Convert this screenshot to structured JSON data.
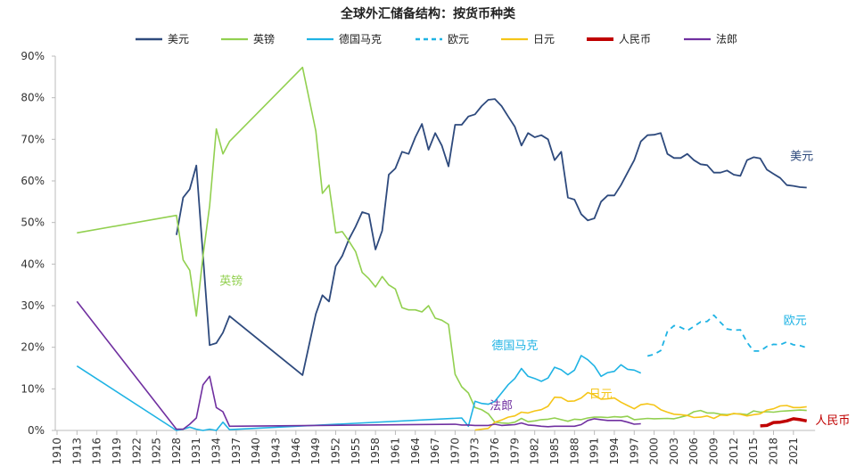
{
  "chart_data": {
    "type": "line",
    "title": "全球外汇储备结构：按货币种类",
    "xlabel": "",
    "ylabel": "",
    "xlim": [
      1910,
      2024
    ],
    "ylim": [
      0,
      90
    ],
    "y_ticks": [
      "0%",
      "10%",
      "20%",
      "30%",
      "40%",
      "50%",
      "60%",
      "70%",
      "80%",
      "90%"
    ],
    "x_ticks": [
      1910,
      1913,
      1916,
      1919,
      1922,
      1925,
      1928,
      1931,
      1934,
      1937,
      1940,
      1943,
      1946,
      1949,
      1952,
      1955,
      1958,
      1961,
      1964,
      1967,
      1970,
      1973,
      1976,
      1979,
      1982,
      1985,
      1988,
      1991,
      1994,
      1997,
      2000,
      2003,
      2006,
      2009,
      2012,
      2015,
      2018,
      2021
    ],
    "grid": false,
    "legend": "top",
    "series": [
      {
        "name": "美元",
        "color": "#2e4a7d",
        "dash": false,
        "width": 1.8,
        "label_year": 2020.5,
        "label_y": 65,
        "x": [
          1928,
          1929,
          1930,
          1931,
          1933,
          1934,
          1935,
          1936,
          1947,
          1949,
          1950,
          1951,
          1952,
          1953,
          1954,
          1955,
          1956,
          1957,
          1958,
          1959,
          1960,
          1961,
          1962,
          1963,
          1964,
          1965,
          1966,
          1967,
          1968,
          1969,
          1970,
          1971,
          1972,
          1973,
          1974,
          1975,
          1976,
          1977,
          1978,
          1979,
          1980,
          1981,
          1982,
          1983,
          1984,
          1985,
          1986,
          1987,
          1988,
          1989,
          1990,
          1991,
          1992,
          1993,
          1994,
          1995,
          1996,
          1997,
          1998,
          1999,
          2000,
          2001,
          2002,
          2003,
          2004,
          2005,
          2006,
          2007,
          2008,
          2009,
          2010,
          2011,
          2012,
          2013,
          2014,
          2015,
          2016,
          2017,
          2018,
          2019,
          2020,
          2021,
          2022,
          2023
        ],
        "y": [
          47,
          56,
          58,
          63.7,
          20.5,
          21,
          23.5,
          27.5,
          13.3,
          28,
          32.5,
          31,
          39.5,
          42,
          46,
          49,
          52.5,
          52,
          43.5,
          48,
          61.5,
          63,
          67,
          66.5,
          70.5,
          73.7,
          67.5,
          71.5,
          68.5,
          63.5,
          73.5,
          73.5,
          75.5,
          76,
          78,
          79.5,
          79.7,
          78,
          75.5,
          73,
          68.5,
          71.5,
          70.5,
          71,
          70,
          65,
          67,
          56,
          55.5,
          52,
          50.5,
          51,
          55,
          56.5,
          56.5,
          59,
          62,
          65,
          69.5,
          71,
          71.1,
          71.5,
          66.5,
          65.5,
          65.5,
          66.5,
          65,
          64,
          63.8,
          62,
          62,
          62.5,
          61.5,
          61.2,
          65,
          65.7,
          65.4,
          62.7,
          61.7,
          60.7,
          59,
          58.8,
          58.5,
          58.4
        ]
      },
      {
        "name": "英镑",
        "color": "#92d050",
        "dash": false,
        "width": 1.6,
        "label_year": 1934.5,
        "label_y": 35,
        "x": [
          1913,
          1928,
          1929,
          1930,
          1931,
          1932,
          1933,
          1934,
          1935,
          1936,
          1947,
          1949,
          1950,
          1951,
          1952,
          1953,
          1954,
          1955,
          1956,
          1957,
          1958,
          1959,
          1960,
          1961,
          1962,
          1963,
          1964,
          1965,
          1966,
          1967,
          1968,
          1969,
          1970,
          1971,
          1972,
          1973,
          1974,
          1975,
          1976,
          1977,
          1978,
          1979,
          1980,
          1981,
          1982,
          1983,
          1984,
          1985,
          1986,
          1987,
          1988,
          1989,
          1990,
          1991,
          1992,
          1993,
          1994,
          1995,
          1996,
          1997,
          1999,
          2000,
          2002,
          2003,
          2005,
          2006,
          2007,
          2008,
          2009,
          2010,
          2011,
          2012,
          2013,
          2014,
          2015,
          2016,
          2017,
          2018,
          2019,
          2020,
          2021,
          2022,
          2023
        ],
        "y": [
          47.5,
          51.7,
          41,
          38.5,
          27.5,
          42,
          54,
          72.5,
          66.5,
          69.5,
          87.3,
          72,
          57,
          59,
          47.5,
          47.8,
          45.5,
          43,
          38,
          36.5,
          34.5,
          37,
          35,
          34,
          29.5,
          29,
          29,
          28.5,
          30,
          27,
          26.5,
          25.5,
          13.5,
          10.5,
          9,
          5.5,
          5,
          4,
          2,
          1.8,
          1.7,
          2,
          2.9,
          2.1,
          2.3,
          2.6,
          2.7,
          3,
          2.6,
          2.2,
          2.7,
          2.6,
          3,
          3.2,
          3.2,
          3.1,
          3.3,
          3.2,
          3.4,
          2.6,
          2.9,
          2.8,
          2.9,
          2.8,
          3.6,
          4.5,
          4.8,
          4.2,
          4.2,
          3.9,
          3.8,
          4,
          4,
          3.8,
          4.7,
          4.4,
          4.5,
          4.4,
          4.6,
          4.7,
          4.8,
          4.9,
          4.8
        ]
      },
      {
        "name": "德国马克",
        "color": "#1fb3e4",
        "dash": false,
        "width": 1.6,
        "label_year": 1975.5,
        "label_y": 19.5,
        "x": [
          1913,
          1928,
          1929,
          1930,
          1931,
          1932,
          1933,
          1934,
          1935,
          1936,
          1971,
          1972,
          1973,
          1974,
          1975,
          1976,
          1977,
          1978,
          1979,
          1980,
          1981,
          1982,
          1983,
          1984,
          1985,
          1986,
          1987,
          1988,
          1989,
          1990,
          1991,
          1992,
          1993,
          1994,
          1995,
          1996,
          1997,
          1998
        ],
        "y": [
          15.5,
          0,
          0.3,
          0.8,
          0.3,
          0,
          0.3,
          0,
          2,
          0.2,
          3,
          1,
          7,
          6.5,
          6.3,
          7,
          9,
          11,
          12.5,
          14.9,
          13,
          12.5,
          11.8,
          12.6,
          15.2,
          14.6,
          13.4,
          14.5,
          18,
          17,
          15.5,
          13,
          13.9,
          14.2,
          15.8,
          14.7,
          14.5,
          13.8
        ]
      },
      {
        "name": "欧元",
        "color": "#1fb3e4",
        "dash": true,
        "width": 1.8,
        "label_year": 2019.5,
        "label_y": 25.5,
        "x": [
          1999,
          2000,
          2001,
          2002,
          2003,
          2004,
          2005,
          2006,
          2007,
          2008,
          2009,
          2010,
          2011,
          2012,
          2013,
          2014,
          2015,
          2016,
          2017,
          2018,
          2019,
          2020,
          2021,
          2022,
          2023
        ],
        "y": [
          17.9,
          18.3,
          19.2,
          23.8,
          25.2,
          24.8,
          24,
          25,
          26.1,
          26.2,
          27.7,
          26,
          24.4,
          24.1,
          24.2,
          21.2,
          19.1,
          19.1,
          20.2,
          20.7,
          20.6,
          21.3,
          20.6,
          20.4,
          19.9
        ]
      },
      {
        "name": "日元",
        "color": "#f5c518",
        "dash": false,
        "width": 1.6,
        "label_year": 1990.2,
        "label_y": 7.8,
        "x": [
          1973,
          1975,
          1976,
          1977,
          1978,
          1979,
          1980,
          1981,
          1982,
          1983,
          1984,
          1985,
          1986,
          1987,
          1988,
          1989,
          1990,
          1991,
          1992,
          1993,
          1994,
          1995,
          1996,
          1997,
          1998,
          1999,
          2000,
          2001,
          2002,
          2003,
          2004,
          2005,
          2006,
          2007,
          2008,
          2009,
          2010,
          2011,
          2012,
          2013,
          2014,
          2015,
          2016,
          2017,
          2018,
          2019,
          2020,
          2021,
          2022,
          2023
        ],
        "y": [
          0.1,
          0.5,
          2,
          2.5,
          3.2,
          3.5,
          4.4,
          4.2,
          4.7,
          5,
          5.8,
          8,
          7.9,
          7,
          7.1,
          7.8,
          9.1,
          8.5,
          7.5,
          7.6,
          7.8,
          6.8,
          6,
          5.2,
          6.2,
          6.4,
          6.1,
          5,
          4.4,
          3.9,
          3.8,
          3.6,
          3.1,
          3.2,
          3.5,
          2.9,
          3.7,
          3.6,
          4.1,
          3.9,
          3.5,
          3.8,
          4,
          4.9,
          5.2,
          5.9,
          6,
          5.5,
          5.5,
          5.7
        ]
      },
      {
        "name": "人民币",
        "color": "#c00000",
        "dash": false,
        "width": 3.5,
        "label_year": 2024.3,
        "label_y": 1.5,
        "x": [
          2016,
          2017,
          2018,
          2019,
          2020,
          2021,
          2022,
          2023
        ],
        "y": [
          1.1,
          1.2,
          1.9,
          2,
          2.3,
          2.8,
          2.6,
          2.3
        ]
      },
      {
        "name": "法郎",
        "color": "#7030a0",
        "dash": false,
        "width": 1.6,
        "label_year": 1975.2,
        "label_y": 5,
        "x": [
          1913,
          1928,
          1929,
          1930,
          1931,
          1932,
          1933,
          1934,
          1935,
          1936,
          1970,
          1971,
          1972,
          1973,
          1974,
          1975,
          1976,
          1977,
          1978,
          1979,
          1980,
          1981,
          1982,
          1983,
          1984,
          1985,
          1986,
          1987,
          1988,
          1989,
          1990,
          1991,
          1992,
          1993,
          1994,
          1995,
          1996,
          1997,
          1998
        ],
        "y": [
          31,
          0.3,
          0.3,
          1.5,
          3,
          11,
          13,
          5.5,
          4.5,
          1,
          1.5,
          1.3,
          1.3,
          1.2,
          1.2,
          1.2,
          1.5,
          1.2,
          1.3,
          1.4,
          1.8,
          1.3,
          1.2,
          1,
          0.9,
          1,
          1,
          1,
          1,
          1.4,
          2.4,
          2.8,
          2.6,
          2.4,
          2.4,
          2.4,
          2,
          1.5,
          1.6
        ]
      }
    ]
  }
}
